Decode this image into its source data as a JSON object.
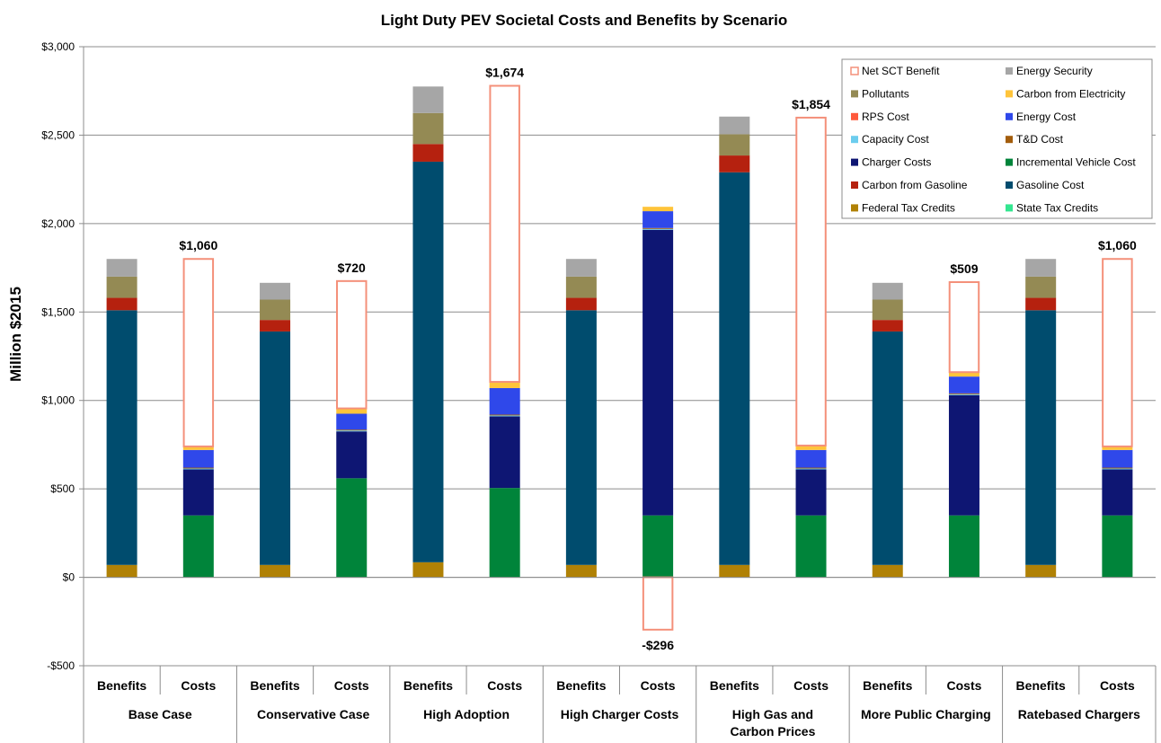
{
  "chart_data": {
    "type": "bar",
    "stacked": true,
    "title": "Light Duty PEV Societal Costs and Benefits by Scenario",
    "ylabel": "Million $2015",
    "ylim": [
      -500,
      3000
    ],
    "yticks": [
      -500,
      0,
      500,
      1000,
      1500,
      2000,
      2500,
      3000
    ],
    "ytick_labels": [
      "-$500",
      "$0",
      "$500",
      "$1,000",
      "$1,500",
      "$2,000",
      "$2,500",
      "$3,000"
    ],
    "grid": true,
    "legend_position": "top-right",
    "legend": [
      {
        "key": "net",
        "label": "Net SCT Benefit",
        "color": "#f4907a",
        "style": "outline"
      },
      {
        "key": "energy_security",
        "label": "Energy Security",
        "color": "#a6a6a6"
      },
      {
        "key": "pollutants",
        "label": "Pollutants",
        "color": "#948a54"
      },
      {
        "key": "carbon_electricity",
        "label": "Carbon from Electricity",
        "color": "#ffc43a"
      },
      {
        "key": "rps_cost",
        "label": "RPS Cost",
        "color": "#ff5a3c"
      },
      {
        "key": "energy_cost",
        "label": "Energy Cost",
        "color": "#2f48ea"
      },
      {
        "key": "capacity_cost",
        "label": "Capacity Cost",
        "color": "#6ccdee"
      },
      {
        "key": "td_cost",
        "label": "T&D Cost",
        "color": "#a35d0c"
      },
      {
        "key": "charger_costs",
        "label": "Charger Costs",
        "color": "#0e1673"
      },
      {
        "key": "incremental_vehicle_cost",
        "label": "Incremental Vehicle Cost",
        "color": "#00843a"
      },
      {
        "key": "carbon_gasoline",
        "label": "Carbon from Gasoline",
        "color": "#b5210f"
      },
      {
        "key": "gasoline_cost",
        "label": "Gasoline Cost",
        "color": "#004c6e"
      },
      {
        "key": "federal_tax_credits",
        "label": "Federal Tax Credits",
        "color": "#b08105"
      },
      {
        "key": "state_tax_credits",
        "label": "State Tax Credits",
        "color": "#33e690"
      }
    ],
    "groups": [
      {
        "label": "Base Case",
        "benefits": {
          "federal_tax_credits": 70,
          "gasoline_cost": 1440,
          "carbon_gasoline": 70,
          "pollutants": 120,
          "energy_security": 100
        },
        "costs": {
          "incremental_vehicle_cost": 350,
          "charger_costs": 260,
          "capacity_cost": 5,
          "td_cost": 5,
          "energy_cost": 100,
          "carbon_electricity": 20
        },
        "net": 1060,
        "net_label": "$1,060"
      },
      {
        "label": "Conservative Case",
        "benefits": {
          "federal_tax_credits": 70,
          "gasoline_cost": 1320,
          "carbon_gasoline": 65,
          "pollutants": 115,
          "energy_security": 95
        },
        "costs": {
          "incremental_vehicle_cost": 560,
          "charger_costs": 265,
          "capacity_cost": 5,
          "td_cost": 5,
          "energy_cost": 90,
          "carbon_electricity": 30
        },
        "net": 720,
        "net_label": "$720"
      },
      {
        "label": "High Adoption",
        "benefits": {
          "federal_tax_credits": 85,
          "gasoline_cost": 2265,
          "carbon_gasoline": 100,
          "pollutants": 175,
          "energy_security": 150
        },
        "costs": {
          "incremental_vehicle_cost": 505,
          "charger_costs": 405,
          "capacity_cost": 5,
          "td_cost": 5,
          "energy_cost": 150,
          "carbon_electricity": 35
        },
        "net": 1674,
        "net_label": "$1,674"
      },
      {
        "label": "High Charger Costs",
        "benefits": {
          "federal_tax_credits": 70,
          "gasoline_cost": 1440,
          "carbon_gasoline": 70,
          "pollutants": 120,
          "energy_security": 100
        },
        "costs": {
          "incremental_vehicle_cost": 350,
          "charger_costs": 1615,
          "capacity_cost": 5,
          "td_cost": 5,
          "energy_cost": 95,
          "carbon_electricity": 25
        },
        "net": -296,
        "net_label": "-$296"
      },
      {
        "label": "High Gas and Carbon Prices",
        "benefits": {
          "federal_tax_credits": 70,
          "gasoline_cost": 2220,
          "carbon_gasoline": 95,
          "pollutants": 120,
          "energy_security": 100
        },
        "costs": {
          "incremental_vehicle_cost": 350,
          "charger_costs": 260,
          "capacity_cost": 5,
          "td_cost": 5,
          "energy_cost": 100,
          "carbon_electricity": 25
        },
        "net": 1854,
        "net_label": "$1,854"
      },
      {
        "label": "More Public Charging",
        "benefits": {
          "federal_tax_credits": 70,
          "gasoline_cost": 1320,
          "carbon_gasoline": 65,
          "pollutants": 115,
          "energy_security": 95
        },
        "costs": {
          "incremental_vehicle_cost": 350,
          "charger_costs": 680,
          "capacity_cost": 5,
          "td_cost": 5,
          "energy_cost": 95,
          "carbon_electricity": 25
        },
        "net": 509,
        "net_label": "$509"
      },
      {
        "label": "Ratebased Chargers",
        "benefits": {
          "federal_tax_credits": 70,
          "gasoline_cost": 1440,
          "carbon_gasoline": 70,
          "pollutants": 120,
          "energy_security": 100
        },
        "costs": {
          "incremental_vehicle_cost": 350,
          "charger_costs": 260,
          "capacity_cost": 5,
          "td_cost": 5,
          "energy_cost": 100,
          "carbon_electricity": 20
        },
        "net": 1060,
        "net_label": "$1,060"
      }
    ],
    "sub_labels": {
      "benefits": "Benefits",
      "costs": "Costs"
    }
  }
}
